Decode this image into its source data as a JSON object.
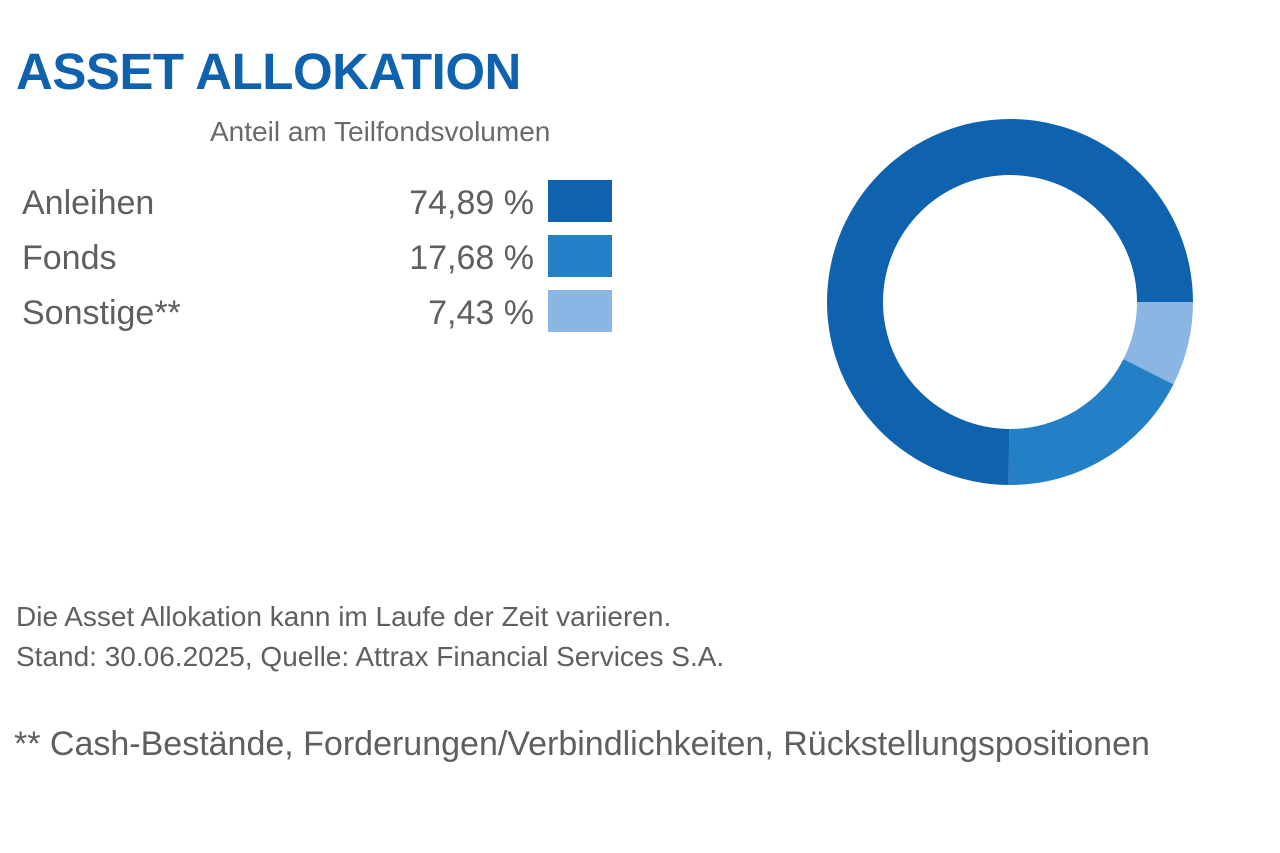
{
  "title": "ASSET ALLOKATION",
  "subtitle": "Anteil am Teilfondsvolumen",
  "legend": [
    {
      "label": "Anleihen",
      "value_text": "74,89 %",
      "color": "#0e62ae"
    },
    {
      "label": "Fonds",
      "value_text": "17,68 %",
      "color": "#2380c6"
    },
    {
      "label": "Sonstige**",
      "value_text": "7,43 %",
      "color": "#8bb6e3"
    }
  ],
  "notes": {
    "line1": "Die Asset Allokation kann im Laufe der Zeit variieren.",
    "line2": "Stand: 30.06.2025, Quelle: Attrax Financial Services S.A."
  },
  "footnote": "** Cash-Bestände, Forderungen/Verbindlichkeiten, Rückstellungspositionen",
  "chart_data": {
    "type": "pie",
    "style": "donut",
    "categories": [
      "Anleihen",
      "Fonds",
      "Sonstige**"
    ],
    "values": [
      74.89,
      17.68,
      7.43
    ],
    "colors": [
      "#0e62ae",
      "#2380c6",
      "#8bb6e3"
    ],
    "start": "3 o'clock",
    "direction": "clockwise",
    "slice_order": [
      "Sonstige**",
      "Fonds",
      "Anleihen"
    ]
  }
}
